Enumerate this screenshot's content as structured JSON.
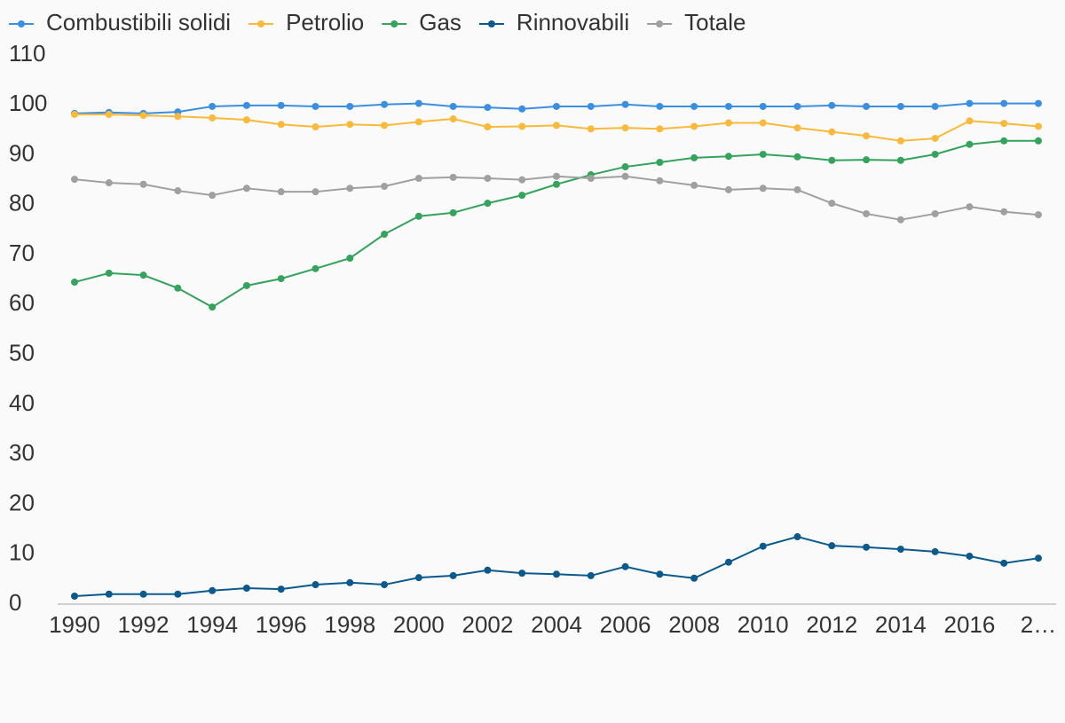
{
  "chart_data": {
    "type": "line",
    "x": [
      1990,
      1991,
      1992,
      1993,
      1994,
      1995,
      1996,
      1997,
      1998,
      1999,
      2000,
      2001,
      2002,
      2003,
      2004,
      2005,
      2006,
      2007,
      2008,
      2009,
      2010,
      2011,
      2012,
      2013,
      2014,
      2015,
      2016,
      2017,
      2018
    ],
    "xlim": [
      1990,
      2018
    ],
    "xticks": [
      1990,
      1992,
      1994,
      1996,
      1998,
      2000,
      2002,
      2004,
      2006,
      2008,
      2010,
      2012,
      2014,
      2016,
      {
        "value": 2018,
        "label": "2…"
      }
    ],
    "ylim": [
      0,
      110
    ],
    "yticks": [
      0,
      10,
      20,
      30,
      40,
      50,
      60,
      70,
      80,
      90,
      100,
      110
    ],
    "grid": false,
    "legend": "top-left",
    "series": [
      {
        "name": "Combustibili solidi",
        "color": "#3b8fe0",
        "values": [
          98.3,
          98.5,
          98.3,
          98.6,
          99.7,
          99.9,
          99.9,
          99.7,
          99.7,
          100.1,
          100.3,
          99.7,
          99.5,
          99.2,
          99.7,
          99.7,
          100.1,
          99.7,
          99.7,
          99.7,
          99.7,
          99.7,
          99.9,
          99.7,
          99.7,
          99.7,
          100.3,
          100.3,
          100.3
        ]
      },
      {
        "name": "Petrolio",
        "color": "#f9b93a",
        "values": [
          98.1,
          98.1,
          97.9,
          97.7,
          97.4,
          97.0,
          96.1,
          95.6,
          96.1,
          95.9,
          96.6,
          97.2,
          95.6,
          95.7,
          95.9,
          95.2,
          95.4,
          95.2,
          95.7,
          96.4,
          96.4,
          95.4,
          94.6,
          93.8,
          92.8,
          93.3,
          96.8,
          96.3,
          95.7
        ]
      },
      {
        "name": "Gas",
        "color": "#34a35c",
        "values": [
          64.5,
          66.3,
          65.9,
          63.3,
          59.5,
          63.8,
          65.2,
          67.2,
          69.3,
          74.1,
          77.7,
          78.4,
          80.3,
          81.9,
          84.1,
          86.0,
          87.6,
          88.5,
          89.4,
          89.7,
          90.1,
          89.6,
          88.9,
          89.0,
          88.9,
          90.1,
          92.1,
          92.8,
          92.8
        ]
      },
      {
        "name": "Rinnovabili",
        "color": "#0b5a8e",
        "values": [
          1.6,
          2.0,
          2.0,
          2.0,
          2.7,
          3.2,
          3.0,
          3.9,
          4.3,
          3.9,
          5.3,
          5.7,
          6.8,
          6.2,
          6.0,
          5.7,
          7.5,
          6.0,
          5.2,
          8.4,
          11.6,
          13.5,
          11.7,
          11.4,
          11.0,
          10.5,
          9.6,
          8.2,
          9.2
        ]
      },
      {
        "name": "Totale",
        "color": "#a0a0a0",
        "values": [
          85.1,
          84.4,
          84.1,
          82.8,
          81.9,
          83.3,
          82.6,
          82.6,
          83.3,
          83.7,
          85.3,
          85.5,
          85.3,
          85.0,
          85.7,
          85.3,
          85.7,
          84.8,
          83.9,
          83.0,
          83.3,
          83.0,
          80.3,
          78.2,
          77.0,
          78.2,
          79.6,
          78.6,
          78.0
        ]
      }
    ]
  }
}
